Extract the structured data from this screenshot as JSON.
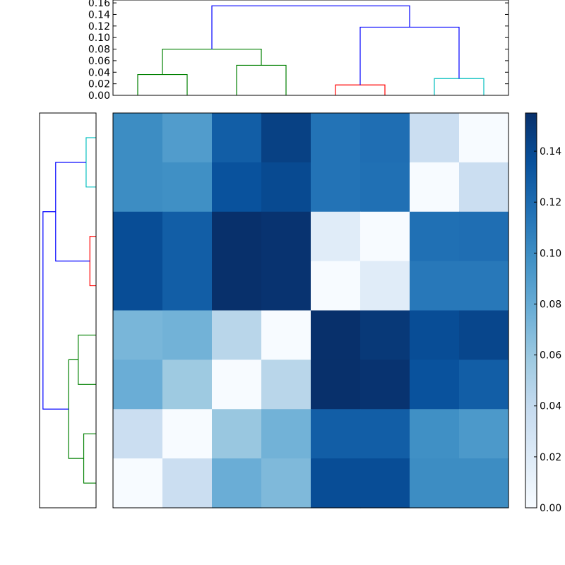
{
  "chart_data": [
    {
      "type": "dendrogram",
      "panel": "top",
      "orientation": "top",
      "leaf_slots": 8,
      "ylim": [
        0,
        0.165
      ],
      "yticks": [
        0.0,
        0.02,
        0.04,
        0.06,
        0.08,
        0.1,
        0.12,
        0.14,
        0.16
      ],
      "ytick_labels": [
        "0.00",
        "0.02",
        "0.04",
        "0.06",
        "0.08",
        "0.10",
        "0.12",
        "0.14",
        "0.16"
      ],
      "links": [
        {
          "xa": 0.5,
          "ya": 0.0,
          "xb": 1.5,
          "yb": 0.0,
          "h": 0.036,
          "color": "#008000"
        },
        {
          "xa": 2.5,
          "ya": 0.0,
          "xb": 3.5,
          "yb": 0.0,
          "h": 0.052,
          "color": "#008000"
        },
        {
          "xa": 1.0,
          "ya": 0.036,
          "xb": 3.0,
          "yb": 0.052,
          "h": 0.08,
          "color": "#008000"
        },
        {
          "xa": 4.5,
          "ya": 0.0,
          "xb": 5.5,
          "yb": 0.0,
          "h": 0.018,
          "color": "#ff0000"
        },
        {
          "xa": 6.5,
          "ya": 0.0,
          "xb": 7.5,
          "yb": 0.0,
          "h": 0.029,
          "color": "#00bfbf"
        },
        {
          "xa": 5.0,
          "ya": 0.018,
          "xb": 7.0,
          "yb": 0.029,
          "h": 0.118,
          "color": "#0000ff"
        },
        {
          "xa": 2.0,
          "ya": 0.08,
          "xb": 6.0,
          "yb": 0.118,
          "h": 0.155,
          "color": "#0000ff"
        }
      ]
    },
    {
      "type": "dendrogram",
      "panel": "left",
      "orientation": "left",
      "leaf_slots": 8,
      "hlim": [
        0,
        0.165
      ],
      "links": [
        {
          "xa": 0.5,
          "ya": 0.0,
          "xb": 1.5,
          "yb": 0.0,
          "h": 0.036,
          "color": "#008000"
        },
        {
          "xa": 2.5,
          "ya": 0.0,
          "xb": 3.5,
          "yb": 0.0,
          "h": 0.052,
          "color": "#008000"
        },
        {
          "xa": 1.0,
          "ya": 0.036,
          "xb": 3.0,
          "yb": 0.052,
          "h": 0.08,
          "color": "#008000"
        },
        {
          "xa": 4.5,
          "ya": 0.0,
          "xb": 5.5,
          "yb": 0.0,
          "h": 0.018,
          "color": "#ff0000"
        },
        {
          "xa": 6.5,
          "ya": 0.0,
          "xb": 7.5,
          "yb": 0.0,
          "h": 0.029,
          "color": "#00bfbf"
        },
        {
          "xa": 5.0,
          "ya": 0.018,
          "xb": 7.0,
          "yb": 0.029,
          "h": 0.118,
          "color": "#0000ff"
        },
        {
          "xa": 2.0,
          "ya": 0.08,
          "xb": 6.0,
          "yb": 0.118,
          "h": 0.155,
          "color": "#0000ff"
        }
      ]
    },
    {
      "type": "heatmap",
      "panel": "main",
      "colormap": "Blues",
      "vmin": 0,
      "vmax": 0.155,
      "values": [
        [
          0.1,
          0.09,
          0.128,
          0.145,
          0.115,
          0.118,
          0.035,
          0.0
        ],
        [
          0.1,
          0.098,
          0.135,
          0.14,
          0.115,
          0.117,
          0.0,
          0.035
        ],
        [
          0.138,
          0.128,
          0.155,
          0.153,
          0.018,
          0.0,
          0.117,
          0.118
        ],
        [
          0.138,
          0.128,
          0.155,
          0.153,
          0.0,
          0.018,
          0.112,
          0.112
        ],
        [
          0.072,
          0.075,
          0.045,
          0.0,
          0.155,
          0.15,
          0.138,
          0.142
        ],
        [
          0.078,
          0.058,
          0.0,
          0.045,
          0.155,
          0.153,
          0.135,
          0.128
        ],
        [
          0.035,
          0.0,
          0.06,
          0.075,
          0.128,
          0.128,
          0.098,
          0.092
        ],
        [
          0.0,
          0.035,
          0.078,
          0.07,
          0.138,
          0.138,
          0.1,
          0.1
        ]
      ]
    },
    {
      "type": "colorbar",
      "panel": "right",
      "colormap": "Blues",
      "vmin": 0,
      "vmax": 0.155,
      "ticks": [
        0.0,
        0.02,
        0.04,
        0.06,
        0.08,
        0.1,
        0.12,
        0.14
      ],
      "tick_labels": [
        "0.00",
        "0.02",
        "0.04",
        "0.06",
        "0.08",
        "0.10",
        "0.12",
        "0.14"
      ]
    }
  ]
}
